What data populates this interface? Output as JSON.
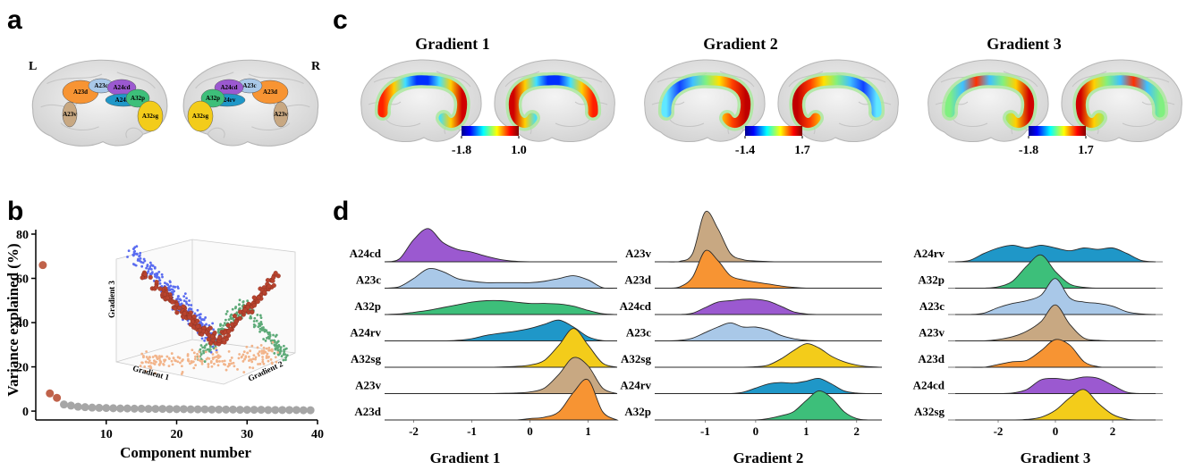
{
  "panel_labels": [
    "a",
    "b",
    "c",
    "d"
  ],
  "panel_a": {
    "hemispheres": [
      "L",
      "R"
    ],
    "regions": [
      {
        "label": "A23d",
        "color": "#f79433"
      },
      {
        "label": "A23c",
        "color": "#a9c8e8"
      },
      {
        "label": "A24cd",
        "color": "#9b59d0"
      },
      {
        "label": "A24rv",
        "color": "#1f97c8"
      },
      {
        "label": "A32p",
        "color": "#3dbf7a"
      },
      {
        "label": "A32sg",
        "color": "#f3cc1a"
      },
      {
        "label": "A23v",
        "color": "#c8a882"
      }
    ]
  },
  "panel_c": {
    "maps": [
      {
        "title": "Gradient 1",
        "colorbar_ticks": [
          -1.8,
          {
            "value": 1.0,
            "label": "1.0"
          }
        ]
      },
      {
        "title": "Gradient 2",
        "colorbar_ticks": [
          -1.4,
          1.7
        ]
      },
      {
        "title": "Gradient 3",
        "colorbar_ticks": [
          -1.8,
          1.7
        ]
      }
    ]
  },
  "chart_data": [
    {
      "type": "scatter",
      "xlabel": "Component number",
      "ylabel": "Variance explained (%)",
      "x": [
        1,
        2,
        3,
        4,
        5,
        6,
        7,
        8,
        9,
        10,
        11,
        12,
        13,
        14,
        15,
        16,
        17,
        18,
        19,
        20,
        21,
        22,
        23,
        24,
        25,
        26,
        27,
        28,
        29,
        30,
        31,
        32,
        33,
        34,
        35,
        36,
        37,
        38,
        39
      ],
      "values": [
        66,
        8,
        6,
        3,
        2.5,
        2,
        1.8,
        1.6,
        1.5,
        1.4,
        1.3,
        1.2,
        1.2,
        1.1,
        1.1,
        1,
        1,
        1,
        0.9,
        0.9,
        0.9,
        0.8,
        0.8,
        0.8,
        0.7,
        0.7,
        0.7,
        0.7,
        0.6,
        0.6,
        0.6,
        0.6,
        0.5,
        0.5,
        0.5,
        0.5,
        0.5,
        0.4,
        0.4
      ],
      "point_colors": [
        "#c0624a",
        "#c0624a",
        "#c0624a",
        "#a6a6a6",
        "#a6a6a6",
        "#a6a6a6",
        "#a6a6a6",
        "#a6a6a6",
        "#a6a6a6",
        "#a6a6a6",
        "#a6a6a6",
        "#a6a6a6",
        "#a6a6a6",
        "#a6a6a6",
        "#a6a6a6",
        "#a6a6a6",
        "#a6a6a6",
        "#a6a6a6",
        "#a6a6a6",
        "#a6a6a6",
        "#a6a6a6",
        "#a6a6a6",
        "#a6a6a6",
        "#a6a6a6",
        "#a6a6a6",
        "#a6a6a6",
        "#a6a6a6",
        "#a6a6a6",
        "#a6a6a6",
        "#a6a6a6",
        "#a6a6a6",
        "#a6a6a6",
        "#a6a6a6",
        "#a6a6a6",
        "#a6a6a6",
        "#a6a6a6",
        "#a6a6a6",
        "#a6a6a6",
        "#a6a6a6"
      ],
      "xlim": [
        0,
        40
      ],
      "xticks": [
        10,
        20,
        30,
        40
      ],
      "ylim": [
        -4,
        80
      ],
      "yticks": [
        0,
        20,
        40,
        60,
        80
      ],
      "inset_axis_labels": [
        "Gradient 3",
        "Gradient 1",
        "Gradient 2"
      ]
    },
    {
      "type": "ridgeline",
      "xlabel": "Gradient 1",
      "x": [
        -2.5,
        -2.25,
        -2,
        -1.75,
        -1.5,
        -1.25,
        -1,
        -0.75,
        -0.5,
        -0.25,
        0,
        0.25,
        0.5,
        0.75,
        1,
        1.25,
        1.5
      ],
      "xlim": [
        -2.5,
        1.5
      ],
      "xticks": [
        -2,
        -1,
        0,
        1
      ],
      "series": [
        {
          "name": "A24cd",
          "color": "#9b59d0",
          "values": [
            0,
            0.1,
            0.8,
            1.2,
            0.7,
            0.45,
            0.35,
            0.2,
            0.08,
            0.02,
            0,
            0,
            0,
            0,
            0,
            0,
            0
          ]
        },
        {
          "name": "A23c",
          "color": "#a9c8e8",
          "values": [
            0,
            0.05,
            0.35,
            0.7,
            0.6,
            0.35,
            0.25,
            0.2,
            0.2,
            0.2,
            0.2,
            0.25,
            0.35,
            0.45,
            0.3,
            0.02,
            0
          ]
        },
        {
          "name": "A32p",
          "color": "#3dbf7a",
          "values": [
            0,
            0.02,
            0.08,
            0.15,
            0.25,
            0.35,
            0.45,
            0.5,
            0.5,
            0.45,
            0.4,
            0.4,
            0.38,
            0.3,
            0.15,
            0.03,
            0
          ]
        },
        {
          "name": "A24rv",
          "color": "#1f97c8",
          "values": [
            0,
            0,
            0,
            0,
            0,
            0.02,
            0.08,
            0.2,
            0.28,
            0.35,
            0.45,
            0.6,
            0.75,
            0.5,
            0.15,
            0.01,
            0
          ]
        },
        {
          "name": "A32sg",
          "color": "#f3cc1a",
          "values": [
            0,
            0,
            0,
            0,
            0,
            0,
            0,
            0,
            0.01,
            0.03,
            0.08,
            0.25,
            0.8,
            1.4,
            0.8,
            0.15,
            0
          ]
        },
        {
          "name": "A23v",
          "color": "#c8a882",
          "values": [
            0,
            0,
            0,
            0,
            0,
            0,
            0,
            0,
            0.01,
            0.02,
            0.06,
            0.2,
            0.7,
            1.3,
            1.0,
            0.2,
            0
          ]
        },
        {
          "name": "A23d",
          "color": "#f79433",
          "values": [
            0,
            0,
            0,
            0,
            0,
            0,
            0,
            0,
            0,
            0,
            0.05,
            0.1,
            0.3,
            1.0,
            1.45,
            0.3,
            0
          ]
        }
      ]
    },
    {
      "type": "ridgeline",
      "xlabel": "Gradient 2",
      "x": [
        -2,
        -1.75,
        -1.5,
        -1.25,
        -1,
        -0.75,
        -0.5,
        -0.25,
        0,
        0.25,
        0.5,
        0.75,
        1,
        1.25,
        1.5,
        1.75,
        2,
        2.25,
        2.5
      ],
      "xlim": [
        -2,
        2.5
      ],
      "xticks": [
        -1,
        0,
        1,
        2
      ],
      "series": [
        {
          "name": "A23v",
          "color": "#c8a882",
          "values": [
            0,
            0,
            0.02,
            0.3,
            1.8,
            1.2,
            0.3,
            0.08,
            0.03,
            0.01,
            0,
            0,
            0,
            0,
            0,
            0,
            0,
            0,
            0
          ]
        },
        {
          "name": "A23d",
          "color": "#f79433",
          "values": [
            0,
            0,
            0.05,
            0.4,
            1.35,
            1.0,
            0.45,
            0.3,
            0.22,
            0.15,
            0.08,
            0.03,
            0,
            0,
            0,
            0,
            0,
            0,
            0
          ]
        },
        {
          "name": "A24cd",
          "color": "#9b59d0",
          "values": [
            0,
            0,
            0,
            0.05,
            0.25,
            0.45,
            0.5,
            0.55,
            0.55,
            0.48,
            0.3,
            0.1,
            0.02,
            0,
            0,
            0,
            0,
            0,
            0
          ]
        },
        {
          "name": "A23c",
          "color": "#a9c8e8",
          "values": [
            0,
            0,
            0.02,
            0.1,
            0.3,
            0.5,
            0.65,
            0.5,
            0.5,
            0.4,
            0.2,
            0.08,
            0.02,
            0,
            0,
            0,
            0,
            0,
            0
          ]
        },
        {
          "name": "A32sg",
          "color": "#f3cc1a",
          "values": [
            0,
            0,
            0,
            0,
            0,
            0,
            0,
            0,
            0.02,
            0.08,
            0.3,
            0.6,
            0.85,
            0.7,
            0.4,
            0.2,
            0.08,
            0.02,
            0
          ]
        },
        {
          "name": "A24rv",
          "color": "#1f97c8",
          "values": [
            0,
            0,
            0,
            0,
            0,
            0,
            0,
            0.05,
            0.2,
            0.35,
            0.4,
            0.38,
            0.45,
            0.55,
            0.35,
            0.1,
            0.02,
            0,
            0
          ]
        },
        {
          "name": "A32p",
          "color": "#3dbf7a",
          "values": [
            0,
            0,
            0,
            0,
            0,
            0,
            0,
            0,
            0,
            0.05,
            0.15,
            0.3,
            0.7,
            1.05,
            0.8,
            0.3,
            0.05,
            0,
            0
          ]
        }
      ]
    },
    {
      "type": "ridgeline",
      "xlabel": "Gradient 3",
      "x": [
        -3.5,
        -3,
        -2.5,
        -2,
        -1.5,
        -1,
        -0.5,
        0,
        0.5,
        1,
        1.5,
        2,
        2.5,
        3,
        3.5
      ],
      "xlim": [
        -3.75,
        3.75
      ],
      "xticks": [
        -2,
        0,
        2
      ],
      "series": [
        {
          "name": "A24rv",
          "color": "#1f97c8",
          "values": [
            0,
            0.05,
            0.3,
            0.5,
            0.6,
            0.5,
            0.6,
            0.5,
            0.4,
            0.5,
            0.45,
            0.5,
            0.3,
            0.05,
            0
          ]
        },
        {
          "name": "A32p",
          "color": "#3dbf7a",
          "values": [
            0,
            0,
            0,
            0.05,
            0.25,
            0.8,
            1.2,
            0.6,
            0.15,
            0.03,
            0,
            0,
            0,
            0,
            0
          ]
        },
        {
          "name": "A23c",
          "color": "#a9c8e8",
          "values": [
            0,
            0,
            0.05,
            0.25,
            0.4,
            0.5,
            0.7,
            1.3,
            0.6,
            0.45,
            0.4,
            0.3,
            0.1,
            0.02,
            0
          ]
        },
        {
          "name": "A23v",
          "color": "#c8a882",
          "values": [
            0,
            0,
            0,
            0.05,
            0.15,
            0.35,
            0.7,
            1.3,
            0.6,
            0.1,
            0.02,
            0,
            0,
            0,
            0
          ]
        },
        {
          "name": "A23d",
          "color": "#f79433",
          "values": [
            0,
            0,
            0,
            0.1,
            0.2,
            0.25,
            0.6,
            1.0,
            0.8,
            0.2,
            0.02,
            0,
            0,
            0,
            0
          ]
        },
        {
          "name": "A24cd",
          "color": "#9b59d0",
          "values": [
            0,
            0,
            0,
            0,
            0.02,
            0.15,
            0.5,
            0.55,
            0.5,
            0.6,
            0.55,
            0.3,
            0.05,
            0,
            0
          ]
        },
        {
          "name": "A32sg",
          "color": "#f3cc1a",
          "values": [
            0,
            0,
            0,
            0,
            0,
            0.02,
            0.1,
            0.35,
            0.8,
            1.1,
            0.6,
            0.2,
            0.03,
            0,
            0
          ]
        }
      ]
    }
  ]
}
